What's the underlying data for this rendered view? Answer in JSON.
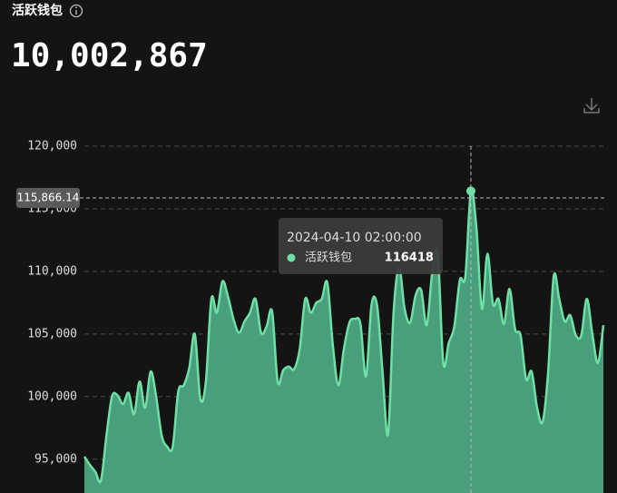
{
  "header": {
    "title": "活跃钱包",
    "headline": "10,002,867"
  },
  "chart_data": {
    "type": "area",
    "series": [
      {
        "name": "活跃钱包",
        "color": "#6ee0a6",
        "values": [
          95200,
          94550,
          93980,
          93300,
          96900,
          100000,
          100100,
          99400,
          100300,
          98600,
          101200,
          99100,
          102000,
          100000,
          96900,
          96000,
          96000,
          100400,
          100900,
          102300,
          105000,
          99800,
          101200,
          107800,
          106700,
          109200,
          108000,
          106200,
          105100,
          106000,
          106700,
          107800,
          105100,
          105600,
          106800,
          101200,
          102100,
          102400,
          102200,
          103800,
          107800,
          106700,
          107500,
          107800,
          109100,
          104100,
          100900,
          103800,
          105900,
          106200,
          105800,
          101600,
          107300,
          107300,
          102000,
          97000,
          106700,
          110300,
          107000,
          105900,
          108100,
          108500,
          105700,
          109900,
          111400,
          102700,
          104300,
          105600,
          109300,
          109600,
          116418,
          113500,
          107000,
          111400,
          107400,
          107800,
          105800,
          108600,
          105400,
          104900,
          101400,
          102000,
          99100,
          98000,
          102000,
          109600,
          107800,
          106000,
          106500,
          104900,
          104900,
          107800,
          105000,
          102700,
          105700
        ]
      }
    ],
    "ylim": [
      92300,
      120000
    ],
    "yticks": [
      {
        "value": 95000,
        "label": "95,000"
      },
      {
        "value": 100000,
        "label": "100,000"
      },
      {
        "value": 105000,
        "label": "105,000"
      },
      {
        "value": 110000,
        "label": "110,000"
      },
      {
        "value": 115000,
        "label": "115,000"
      },
      {
        "value": 120000,
        "label": "120,000"
      }
    ],
    "grid": true,
    "crosshair_y": {
      "value": 115866.14,
      "label": "115,866.14"
    },
    "tooltip": {
      "date": "2024-04-10 02:00:00"
    }
  }
}
